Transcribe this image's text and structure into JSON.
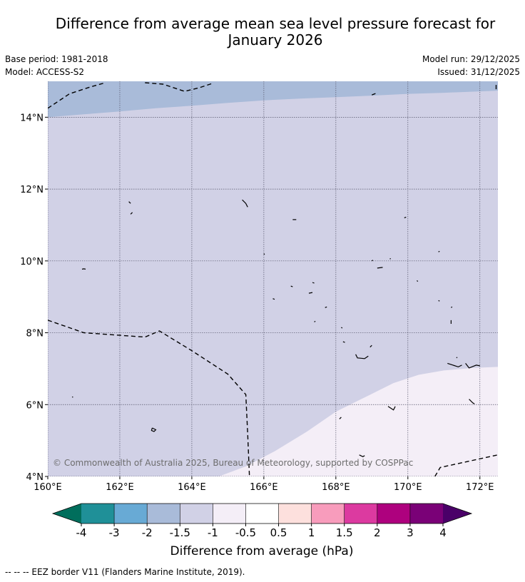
{
  "title": {
    "line1": "Difference from average mean sea level pressure forecast for",
    "line2": "January 2026"
  },
  "meta": {
    "base_period": "Base period: 1981-2018",
    "model": "Model: ACCESS-S2",
    "model_run": "Model run: 29/12/2025",
    "issued": "Issued: 31/12/2025"
  },
  "copyright": "© Commonwealth of Australia 2025, Bureau of Meteorology, supported by COSPPac",
  "footer": "--  --  -- EEZ border V11 (Flanders Marine Institute, 2019).",
  "map": {
    "lon_range": [
      160,
      172.5
    ],
    "lat_range": [
      4,
      15
    ],
    "x_ticks": [
      {
        "value": 160,
        "label": "160°E"
      },
      {
        "value": 162,
        "label": "162°E"
      },
      {
        "value": 164,
        "label": "164°E"
      },
      {
        "value": 166,
        "label": "166°E"
      },
      {
        "value": 168,
        "label": "168°E"
      },
      {
        "value": 170,
        "label": "170°E"
      },
      {
        "value": 172,
        "label": "172°E"
      }
    ],
    "y_ticks": [
      {
        "value": 4,
        "label": "4°N"
      },
      {
        "value": 6,
        "label": "6°N"
      },
      {
        "value": 8,
        "label": "8°N"
      },
      {
        "value": 10,
        "label": "10°N"
      },
      {
        "value": 12,
        "label": "12°N"
      },
      {
        "value": 14,
        "label": "14°N"
      }
    ],
    "regions": [
      {
        "range": "-1.5 to -1",
        "color": "#d1d1e6"
      },
      {
        "range": "-2 to -1.5",
        "color": "#a9bbd9",
        "boundary": [
          [
            160,
            14.0
          ],
          [
            161,
            14.08
          ],
          [
            162,
            14.16
          ],
          [
            163,
            14.25
          ],
          [
            164,
            14.32
          ],
          [
            165,
            14.4
          ],
          [
            166,
            14.47
          ],
          [
            167,
            14.52
          ],
          [
            168,
            14.56
          ],
          [
            169,
            14.6
          ],
          [
            170,
            14.65
          ],
          [
            171,
            14.68
          ],
          [
            172,
            14.72
          ],
          [
            172.5,
            14.74
          ]
        ]
      },
      {
        "range": "-1 to -0.5",
        "color": "#f4eef7",
        "boundary": [
          [
            164.75,
            4
          ],
          [
            165.5,
            4.28
          ],
          [
            166.3,
            4.7
          ],
          [
            167.2,
            5.25
          ],
          [
            168,
            5.8
          ],
          [
            168.8,
            6.2
          ],
          [
            169.6,
            6.6
          ],
          [
            170.3,
            6.83
          ],
          [
            171,
            6.95
          ],
          [
            171.8,
            7.02
          ],
          [
            172.5,
            7.05
          ]
        ]
      }
    ],
    "eez_lines": [
      [
        [
          160,
          14.25
        ],
        [
          160.6,
          14.65
        ],
        [
          161.2,
          14.85
        ],
        [
          161.6,
          14.96
        ]
      ],
      [
        [
          162.7,
          14.96
        ],
        [
          163.2,
          14.92
        ],
        [
          163.8,
          14.72
        ],
        [
          164.2,
          14.82
        ],
        [
          164.6,
          14.95
        ]
      ],
      [
        [
          169.0,
          14.62
        ],
        [
          169.1,
          14.66
        ]
      ],
      [
        [
          172.45,
          14.78
        ],
        [
          172.45,
          14.9
        ]
      ],
      [
        [
          160,
          8.35
        ],
        [
          161,
          8.0
        ],
        [
          162,
          7.93
        ],
        [
          162.7,
          7.88
        ],
        [
          163.1,
          8.05
        ],
        [
          164,
          7.5
        ],
        [
          165,
          6.85
        ],
        [
          165.5,
          6.28
        ],
        [
          165.55,
          5.2
        ],
        [
          165.6,
          4.0
        ]
      ],
      [
        [
          170.75,
          4.0
        ],
        [
          170.9,
          4.25
        ],
        [
          172.5,
          4.6
        ]
      ]
    ],
    "islands": [
      [
        [
          160.95,
          9.77
        ],
        [
          161.0,
          9.78
        ],
        [
          161.05,
          9.77
        ]
      ],
      [
        [
          162.25,
          11.65
        ],
        [
          162.3,
          11.6
        ]
      ],
      [
        [
          162.35,
          11.35
        ],
        [
          162.3,
          11.3
        ]
      ],
      [
        [
          160.68,
          6.22
        ],
        [
          160.7,
          6.2
        ]
      ],
      [
        [
          162.9,
          5.35
        ],
        [
          163.0,
          5.3
        ],
        [
          162.95,
          5.25
        ],
        [
          162.88,
          5.28
        ],
        [
          162.9,
          5.35
        ]
      ],
      [
        [
          165.4,
          11.7
        ],
        [
          165.5,
          11.6
        ],
        [
          165.55,
          11.5
        ]
      ],
      [
        [
          166.8,
          11.15
        ],
        [
          166.9,
          11.15
        ]
      ],
      [
        [
          166.0,
          10.2
        ],
        [
          166.02,
          10.18
        ]
      ],
      [
        [
          166.75,
          9.3
        ],
        [
          166.8,
          9.28
        ]
      ],
      [
        [
          167.35,
          9.4
        ],
        [
          167.4,
          9.38
        ]
      ],
      [
        [
          167.25,
          9.1
        ],
        [
          167.35,
          9.12
        ]
      ],
      [
        [
          167.7,
          8.7
        ],
        [
          167.75,
          8.72
        ]
      ],
      [
        [
          166.25,
          8.95
        ],
        [
          166.3,
          8.93
        ]
      ],
      [
        [
          167.4,
          8.3
        ],
        [
          167.43,
          8.32
        ]
      ],
      [
        [
          168.15,
          8.15
        ],
        [
          168.18,
          8.13
        ]
      ],
      [
        [
          168.2,
          7.75
        ],
        [
          168.25,
          7.73
        ]
      ],
      [
        [
          168.55,
          7.4
        ],
        [
          168.6,
          7.3
        ],
        [
          168.8,
          7.28
        ],
        [
          168.9,
          7.35
        ]
      ],
      [
        [
          168.95,
          7.6
        ],
        [
          169.0,
          7.65
        ]
      ],
      [
        [
          169.0,
          10.0
        ],
        [
          169.03,
          10.02
        ]
      ],
      [
        [
          169.15,
          9.8
        ],
        [
          169.3,
          9.82
        ]
      ],
      [
        [
          169.5,
          10.05
        ],
        [
          169.52,
          10.07
        ]
      ],
      [
        [
          169.9,
          11.2
        ],
        [
          169.95,
          11.22
        ]
      ],
      [
        [
          170.25,
          9.45
        ],
        [
          170.28,
          9.43
        ]
      ],
      [
        [
          170.85,
          10.25
        ],
        [
          170.88,
          10.27
        ]
      ],
      [
        [
          170.85,
          8.9
        ],
        [
          170.88,
          8.88
        ]
      ],
      [
        [
          171.2,
          8.7
        ],
        [
          171.23,
          8.72
        ]
      ],
      [
        [
          171.2,
          8.25
        ],
        [
          171.2,
          8.35
        ]
      ],
      [
        [
          171.1,
          7.15
        ],
        [
          171.4,
          7.05
        ],
        [
          171.5,
          7.1
        ]
      ],
      [
        [
          171.6,
          7.15
        ],
        [
          171.7,
          7.02
        ],
        [
          171.9,
          7.1
        ],
        [
          172.0,
          7.08
        ]
      ],
      [
        [
          171.7,
          6.15
        ],
        [
          171.8,
          6.05
        ],
        [
          171.85,
          6.02
        ]
      ],
      [
        [
          169.45,
          5.95
        ],
        [
          169.6,
          5.85
        ],
        [
          169.65,
          5.95
        ]
      ],
      [
        [
          168.1,
          5.6
        ],
        [
          168.15,
          5.65
        ]
      ],
      [
        [
          168.65,
          4.6
        ],
        [
          168.75,
          4.55
        ],
        [
          168.8,
          4.58
        ]
      ],
      [
        [
          171.35,
          7.3
        ],
        [
          171.37,
          7.32
        ]
      ]
    ]
  },
  "colorbar": {
    "label": "Difference from average (hPa)",
    "tick_labels": [
      "-4",
      "-3",
      "-2",
      "-1.5",
      "-1",
      "-0.5",
      "0.5",
      "1",
      "1.5",
      "2",
      "3",
      "4"
    ],
    "under_color": "#006e5c",
    "over_color": "#4a0068",
    "colors": [
      "#1f9098",
      "#68aad5",
      "#a9bbd9",
      "#d1d1e6",
      "#f4eef7",
      "#ffffff",
      "#fde0dd",
      "#f89cbc",
      "#dc3aa0",
      "#ae017e",
      "#7a0177"
    ]
  }
}
